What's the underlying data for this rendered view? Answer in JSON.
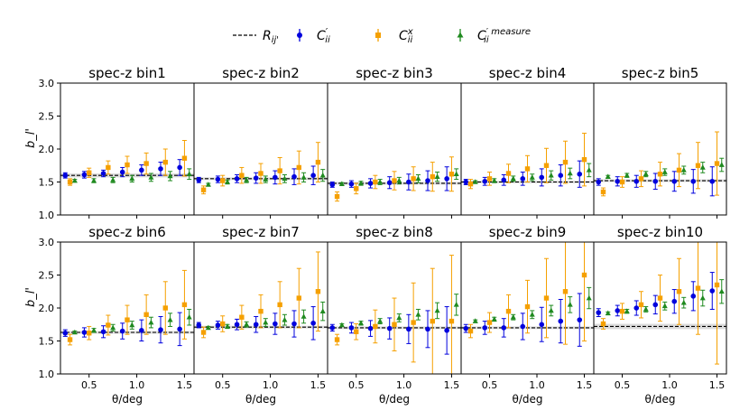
{
  "figure": {
    "x_tick_labels": [
      "0.5",
      "1.0",
      "1.5"
    ],
    "y_tick_labels": [
      "1.0",
      "1.5",
      "2.0",
      "2.5",
      "3.0"
    ]
  },
  "legend": {
    "entries": [
      {
        "label": "R_ij'",
        "symbol": "dashed-line",
        "color": "#000000"
      },
      {
        "label": "C'_ii",
        "symbol": "circle",
        "color": "#0000dd"
      },
      {
        "label": "C^x_ii",
        "symbol": "square",
        "color": "#f5a000"
      },
      {
        "label": "C'^measure_ii",
        "symbol": "triangle",
        "color": "#1f8a1f"
      }
    ]
  },
  "colors": {
    "blue": "#0000dd",
    "orange": "#f5a000",
    "green": "#1f8a1f",
    "band": "#cccccc"
  },
  "chart_data": {
    "type": "scatter",
    "xlabel": "θ/deg",
    "ylabel": "b_l'",
    "ylim": [
      1.0,
      3.0
    ],
    "xlim": [
      0.2,
      1.6
    ],
    "x_ticks": [
      0.5,
      1.0,
      1.5
    ],
    "y_ticks": [
      1.0,
      1.5,
      2.0,
      2.5,
      3.0
    ],
    "x_blue": [
      0.25,
      0.45,
      0.65,
      0.85,
      1.05,
      1.25,
      1.45
    ],
    "x_orange": [
      0.3,
      0.5,
      0.7,
      0.9,
      1.1,
      1.3,
      1.5
    ],
    "x_green": [
      0.35,
      0.55,
      0.75,
      0.95,
      1.15,
      1.35,
      1.55
    ],
    "panels": [
      {
        "title": "spec-z bin1",
        "r": 1.6,
        "r_err": 0.03,
        "blue": {
          "y": [
            1.6,
            1.61,
            1.63,
            1.65,
            1.68,
            1.7,
            1.72
          ],
          "err": [
            0.04,
            0.05,
            0.05,
            0.07,
            0.08,
            0.1,
            0.12
          ]
        },
        "orange": {
          "y": [
            1.5,
            1.64,
            1.72,
            1.76,
            1.78,
            1.8,
            1.86
          ],
          "err": [
            0.05,
            0.07,
            0.1,
            0.13,
            0.16,
            0.2,
            0.27
          ]
        },
        "green": {
          "y": [
            1.52,
            1.52,
            1.53,
            1.55,
            1.57,
            1.59,
            1.62
          ],
          "err": [
            0.02,
            0.03,
            0.04,
            0.05,
            0.06,
            0.07,
            0.08
          ]
        }
      },
      {
        "title": "spec-z bin2",
        "r": 1.55,
        "r_err": 0.02,
        "blue": {
          "y": [
            1.53,
            1.54,
            1.55,
            1.56,
            1.57,
            1.58,
            1.6
          ],
          "err": [
            0.04,
            0.05,
            0.06,
            0.08,
            0.1,
            0.12,
            0.14
          ]
        },
        "orange": {
          "y": [
            1.38,
            1.52,
            1.6,
            1.63,
            1.67,
            1.72,
            1.8
          ],
          "err": [
            0.06,
            0.08,
            0.12,
            0.15,
            0.2,
            0.25,
            0.3
          ]
        },
        "green": {
          "y": [
            1.46,
            1.5,
            1.53,
            1.54,
            1.55,
            1.57,
            1.6
          ],
          "err": [
            0.02,
            0.03,
            0.04,
            0.05,
            0.06,
            0.07,
            0.09
          ]
        }
      },
      {
        "title": "spec-z bin3",
        "r": 1.48,
        "r_err": 0.02,
        "blue": {
          "y": [
            1.46,
            1.47,
            1.48,
            1.49,
            1.5,
            1.52,
            1.55
          ],
          "err": [
            0.04,
            0.05,
            0.07,
            0.09,
            0.12,
            0.15,
            0.18
          ]
        },
        "orange": {
          "y": [
            1.28,
            1.4,
            1.5,
            1.52,
            1.55,
            1.58,
            1.62
          ],
          "err": [
            0.07,
            0.08,
            0.1,
            0.14,
            0.18,
            0.22,
            0.26
          ]
        },
        "green": {
          "y": [
            1.47,
            1.48,
            1.5,
            1.52,
            1.55,
            1.58,
            1.62
          ],
          "err": [
            0.02,
            0.03,
            0.04,
            0.05,
            0.06,
            0.07,
            0.08
          ]
        }
      },
      {
        "title": "spec-z bin4",
        "r": 1.5,
        "r_err": 0.02,
        "blue": {
          "y": [
            1.5,
            1.51,
            1.53,
            1.55,
            1.57,
            1.6,
            1.62
          ],
          "err": [
            0.04,
            0.06,
            0.08,
            0.1,
            0.13,
            0.16,
            0.2
          ]
        },
        "orange": {
          "y": [
            1.47,
            1.55,
            1.63,
            1.7,
            1.75,
            1.8,
            1.84
          ],
          "err": [
            0.07,
            0.1,
            0.14,
            0.2,
            0.26,
            0.32,
            0.4
          ]
        },
        "green": {
          "y": [
            1.5,
            1.52,
            1.55,
            1.57,
            1.6,
            1.63,
            1.68
          ],
          "err": [
            0.02,
            0.03,
            0.04,
            0.05,
            0.07,
            0.08,
            0.1
          ]
        }
      },
      {
        "title": "spec-z bin5",
        "r": 1.52,
        "r_err": 0.02,
        "blue": {
          "y": [
            1.5,
            1.51,
            1.51,
            1.51,
            1.51,
            1.51,
            1.51
          ],
          "err": [
            0.05,
            0.07,
            0.09,
            0.12,
            0.15,
            0.18,
            0.22
          ]
        },
        "orange": {
          "y": [
            1.35,
            1.5,
            1.55,
            1.62,
            1.68,
            1.75,
            1.78
          ],
          "err": [
            0.06,
            0.08,
            0.12,
            0.18,
            0.25,
            0.35,
            0.48
          ]
        },
        "green": {
          "y": [
            1.58,
            1.6,
            1.62,
            1.65,
            1.68,
            1.72,
            1.76
          ],
          "err": [
            0.02,
            0.03,
            0.04,
            0.05,
            0.06,
            0.08,
            0.1
          ]
        }
      },
      {
        "title": "spec-z bin6",
        "r": 1.63,
        "r_err": 0.02,
        "blue": {
          "y": [
            1.62,
            1.63,
            1.64,
            1.65,
            1.66,
            1.67,
            1.68
          ],
          "err": [
            0.05,
            0.07,
            0.09,
            0.12,
            0.16,
            0.2,
            0.25
          ]
        },
        "orange": {
          "y": [
            1.52,
            1.62,
            1.74,
            1.82,
            1.9,
            2.0,
            2.05
          ],
          "err": [
            0.08,
            0.1,
            0.15,
            0.22,
            0.3,
            0.4,
            0.52
          ]
        },
        "green": {
          "y": [
            1.63,
            1.66,
            1.7,
            1.74,
            1.78,
            1.82,
            1.86
          ],
          "err": [
            0.02,
            0.03,
            0.05,
            0.06,
            0.08,
            0.1,
            0.12
          ]
        }
      },
      {
        "title": "spec-z bin7",
        "r": 1.71,
        "r_err": 0.02,
        "blue": {
          "y": [
            1.74,
            1.74,
            1.75,
            1.75,
            1.76,
            1.76,
            1.77
          ],
          "err": [
            0.04,
            0.06,
            0.08,
            0.12,
            0.16,
            0.2,
            0.25
          ]
        },
        "orange": {
          "y": [
            1.63,
            1.76,
            1.86,
            1.95,
            2.05,
            2.15,
            2.25
          ],
          "err": [
            0.08,
            0.12,
            0.18,
            0.25,
            0.35,
            0.45,
            0.6
          ]
        },
        "green": {
          "y": [
            1.7,
            1.72,
            1.75,
            1.78,
            1.82,
            1.87,
            1.95
          ],
          "err": [
            0.02,
            0.03,
            0.04,
            0.06,
            0.08,
            0.1,
            0.14
          ]
        }
      },
      {
        "title": "spec-z bin8",
        "r": 1.7,
        "r_err": 0.02,
        "blue": {
          "y": [
            1.7,
            1.7,
            1.69,
            1.69,
            1.68,
            1.68,
            1.66
          ],
          "err": [
            0.05,
            0.08,
            0.12,
            0.16,
            0.22,
            0.28,
            0.36
          ]
        },
        "orange": {
          "y": [
            1.52,
            1.64,
            1.72,
            1.75,
            1.78,
            1.8,
            1.8
          ],
          "err": [
            0.08,
            0.12,
            0.25,
            0.4,
            0.6,
            0.8,
            1.0
          ]
        },
        "green": {
          "y": [
            1.74,
            1.77,
            1.8,
            1.85,
            1.9,
            1.96,
            2.05
          ],
          "err": [
            0.02,
            0.03,
            0.04,
            0.06,
            0.08,
            0.12,
            0.16
          ]
        }
      },
      {
        "title": "spec-z bin9",
        "r": 1.7,
        "r_err": 0.02,
        "blue": {
          "y": [
            1.69,
            1.7,
            1.7,
            1.72,
            1.75,
            1.8,
            1.82
          ],
          "err": [
            0.06,
            0.1,
            0.14,
            0.2,
            0.26,
            0.33,
            0.4
          ]
        },
        "orange": {
          "y": [
            1.65,
            1.78,
            1.95,
            2.02,
            2.15,
            2.25,
            2.5
          ],
          "err": [
            0.1,
            0.15,
            0.25,
            0.4,
            0.6,
            0.8,
            1.0
          ]
        },
        "green": {
          "y": [
            1.8,
            1.83,
            1.86,
            1.9,
            1.96,
            2.05,
            2.15
          ],
          "err": [
            0.02,
            0.03,
            0.04,
            0.06,
            0.08,
            0.12,
            0.16
          ]
        }
      },
      {
        "title": "spec-z bin10",
        "r": 1.72,
        "r_err": 0.04,
        "blue": {
          "y": [
            1.93,
            1.96,
            2.0,
            2.05,
            2.1,
            2.18,
            2.26
          ],
          "err": [
            0.06,
            0.08,
            0.11,
            0.14,
            0.18,
            0.22,
            0.28
          ]
        },
        "orange": {
          "y": [
            1.76,
            1.95,
            2.05,
            2.15,
            2.25,
            2.3,
            2.35
          ],
          "err": [
            0.08,
            0.12,
            0.2,
            0.35,
            0.5,
            0.7,
            1.2
          ]
        },
        "green": {
          "y": [
            1.92,
            1.95,
            1.98,
            2.03,
            2.08,
            2.15,
            2.25
          ],
          "err": [
            0.02,
            0.03,
            0.04,
            0.06,
            0.08,
            0.12,
            0.18
          ]
        }
      }
    ]
  }
}
